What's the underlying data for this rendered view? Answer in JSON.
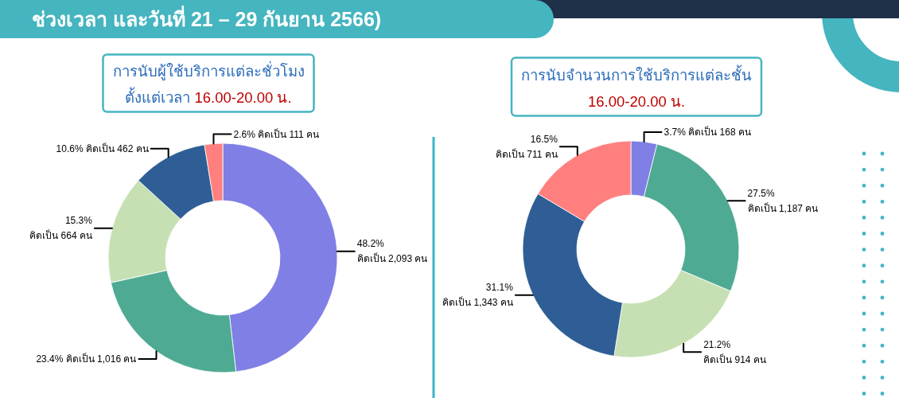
{
  "chart_data": [
    {
      "type": "other",
      "title": "ช่วงเวลา และวันที่ 21 – 29 กันยาน 2566)"
    },
    {
      "type": "donut",
      "title": "การนับผู้ใช้บริการแต่ละชั่วโมง",
      "subtitle": "ตั้งแต่เวลา 16.00-20.00 น.",
      "categories": [
        null,
        null,
        null,
        null,
        null
      ],
      "values": [
        2093,
        1016,
        664,
        462,
        111
      ],
      "colors": [
        "#7f7fe5",
        "#4faa94",
        "#c6e0b4",
        "#2e5e95",
        "#ff7f7f"
      ],
      "value_labels": [
        "48.2%\nคิดเป็น 2,093 คน",
        "23.4% คิดเป็น 1,016 คน",
        "15.3%\nคิดเป็น 664 คน",
        "10.6% คิดเป็น 462 คน",
        "2.6% คิดเป็น 111 คน"
      ]
    },
    {
      "type": "donut",
      "title": "การนับจำนวนการใช้บริการแต่ละชั้น",
      "subtitle": "16.00-20.00 น.",
      "categories": [
        null,
        null,
        null,
        null,
        null
      ],
      "values": [
        168,
        1187,
        914,
        1343,
        711
      ],
      "colors": [
        "#7f7fe5",
        "#4faa94",
        "#c6e0b4",
        "#2e5e95",
        "#ff7f7f"
      ],
      "value_labels": [
        "3.7% คิดเป็น 168 คน",
        "27.5%\nคิดเป็น 1,187 คน",
        "21.2%\nคิดเป็น 914 คน",
        "31.1%\nคิดเป็น 1,343 คน",
        "16.5%\nคิดเป็น 711 คน"
      ]
    }
  ]
}
